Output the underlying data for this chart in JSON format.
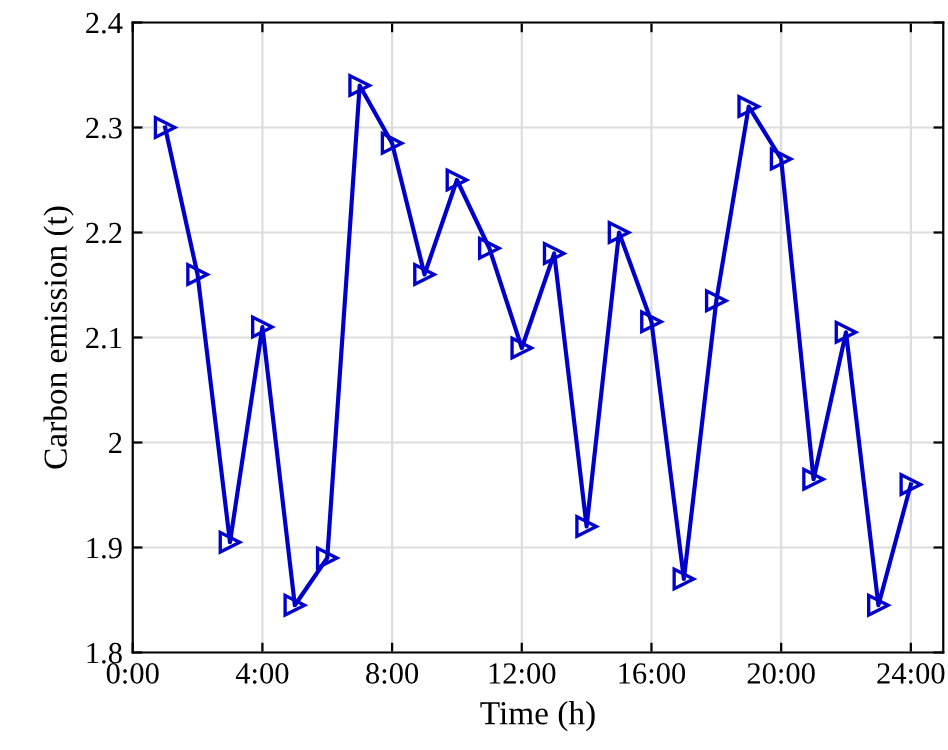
{
  "chart_data": {
    "type": "line",
    "xlabel": "Time (h)",
    "ylabel": "Carbon emission (t)",
    "x": [
      1,
      2,
      3,
      4,
      5,
      6,
      7,
      8,
      9,
      10,
      11,
      12,
      13,
      14,
      15,
      16,
      17,
      18,
      19,
      20,
      21,
      22,
      23,
      24
    ],
    "series": [
      {
        "color": "#0000cc",
        "values": [
          2.3,
          2.16,
          1.905,
          2.11,
          1.845,
          1.89,
          2.34,
          2.285,
          2.16,
          2.25,
          2.185,
          2.09,
          2.18,
          1.92,
          2.2,
          2.115,
          1.87,
          2.135,
          2.32,
          2.27,
          1.965,
          2.105,
          1.845,
          1.96
        ]
      }
    ],
    "xlim": [
      0,
      25
    ],
    "xticks": [
      {
        "value": 0,
        "label": "0:00"
      },
      {
        "value": 4,
        "label": "4:00"
      },
      {
        "value": 8,
        "label": "8:00"
      },
      {
        "value": 12,
        "label": "12:00"
      },
      {
        "value": 16,
        "label": "16:00"
      },
      {
        "value": 20,
        "label": "20:00"
      },
      {
        "value": 24,
        "label": "24:00"
      }
    ],
    "ylim": [
      1.8,
      2.4
    ],
    "yticks": [
      1.8,
      1.9,
      2,
      2.1,
      2.2,
      2.3,
      2.4
    ],
    "grid": true,
    "marker": "triangle",
    "line_style": "solid"
  }
}
